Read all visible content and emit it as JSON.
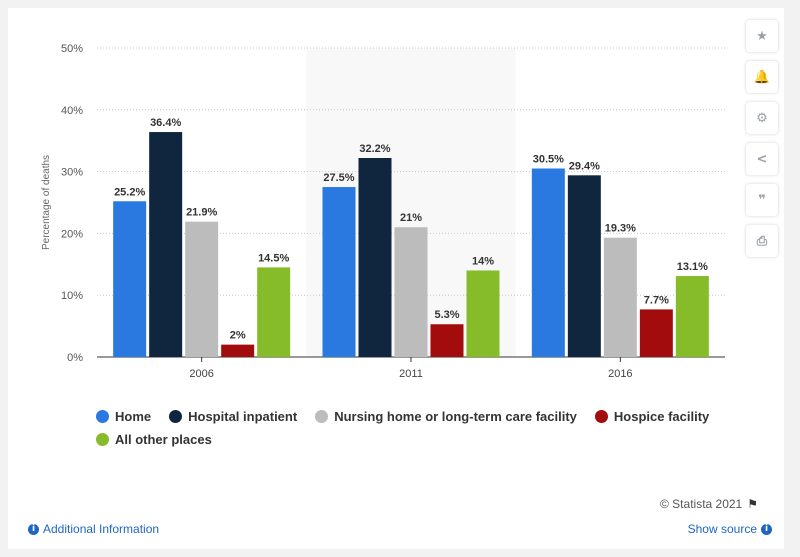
{
  "chart_data": {
    "type": "bar",
    "categories": [
      "2006",
      "2011",
      "2016"
    ],
    "series": [
      {
        "name": "Home",
        "color": "#2979e0",
        "values": [
          25.2,
          27.5,
          30.5
        ],
        "labels": [
          "25.2%",
          "27.5%",
          "30.5%"
        ]
      },
      {
        "name": "Hospital inpatient",
        "color": "#10263f",
        "values": [
          36.4,
          32.2,
          29.4
        ],
        "labels": [
          "36.4%",
          "32.2%",
          "29.4%"
        ]
      },
      {
        "name": "Nursing home or long-term care facility",
        "color": "#bcbcbc",
        "values": [
          21.9,
          21,
          19.3
        ],
        "labels": [
          "21.9%",
          "21%",
          "19.3%"
        ]
      },
      {
        "name": "Hospice facility",
        "color": "#a30c0c",
        "values": [
          2,
          5.3,
          7.7
        ],
        "labels": [
          "2%",
          "5.3%",
          "7.7%"
        ]
      },
      {
        "name": "All other places",
        "color": "#86bb29",
        "values": [
          14.5,
          14,
          13.1
        ],
        "labels": [
          "14.5%",
          "14%",
          "13.1%"
        ]
      }
    ],
    "ylabel": "Percentage of deaths",
    "ylim": [
      0,
      50
    ],
    "yticks": [
      0,
      10,
      20,
      30,
      40,
      50
    ],
    "ytick_labels": [
      "0%",
      "10%",
      "20%",
      "30%",
      "40%",
      "50%"
    ],
    "grid": true,
    "highlight_category": "2011",
    "legend_position": "bottom"
  },
  "toolbar": {
    "buttons": [
      {
        "name": "star-icon",
        "glyph": "★"
      },
      {
        "name": "bell-icon",
        "glyph": "🔔"
      },
      {
        "name": "gear-icon",
        "glyph": "⚙"
      },
      {
        "name": "share-icon",
        "glyph": "<"
      },
      {
        "name": "quote-icon",
        "glyph": "❞"
      },
      {
        "name": "print-icon",
        "glyph": "⎙"
      }
    ]
  },
  "footer": {
    "copyright": "© Statista 2021",
    "additional_info": "Additional Information",
    "show_source": "Show source"
  }
}
